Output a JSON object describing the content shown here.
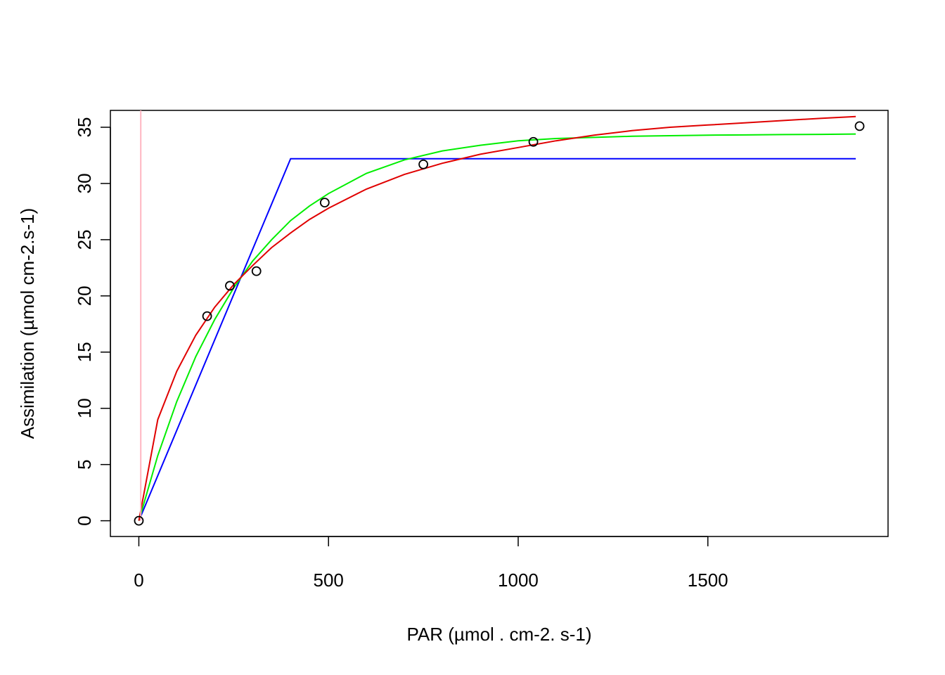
{
  "chart_data": {
    "type": "scatter",
    "xlabel": "PAR (µmol . cm-2. s-1)",
    "ylabel": "Assimilation (µmol cm-2.s-1)",
    "xlim": [
      -75,
      1975
    ],
    "ylim": [
      -1.4,
      36.5
    ],
    "x_ticks": [
      0,
      500,
      1000,
      1500
    ],
    "y_ticks": [
      0,
      5,
      10,
      15,
      20,
      25,
      30,
      35
    ],
    "grid": false,
    "points": {
      "x": [
        0,
        180,
        240,
        310,
        490,
        750,
        1040,
        1900
      ],
      "y": [
        0,
        18.2,
        20.9,
        22.2,
        28.3,
        31.7,
        33.7,
        35.1
      ]
    },
    "series": [
      {
        "color": "#0000ff",
        "x": [
          0,
          400,
          1890
        ],
        "y": [
          0,
          32.2,
          32.2
        ]
      },
      {
        "color": "#00ee00",
        "x": [
          0,
          50,
          100,
          150,
          200,
          250,
          300,
          350,
          400,
          450,
          500,
          600,
          700,
          800,
          900,
          1000,
          1100,
          1200,
          1300,
          1400,
          1500,
          1600,
          1700,
          1800,
          1890
        ],
        "y": [
          0,
          5.8,
          10.6,
          14.6,
          17.9,
          20.7,
          23.1,
          25.0,
          26.7,
          28.0,
          29.1,
          30.9,
          32.1,
          32.9,
          33.4,
          33.8,
          34.0,
          34.1,
          34.2,
          34.25,
          34.3,
          34.32,
          34.35,
          34.37,
          34.4
        ]
      },
      {
        "color": "#e00000",
        "x": [
          0,
          50,
          100,
          150,
          200,
          250,
          300,
          350,
          400,
          450,
          500,
          600,
          700,
          800,
          900,
          1000,
          1100,
          1200,
          1300,
          1400,
          1500,
          1600,
          1700,
          1800,
          1890
        ],
        "y": [
          0,
          9.0,
          13.3,
          16.5,
          19.0,
          21.0,
          22.7,
          24.3,
          25.6,
          26.8,
          27.8,
          29.5,
          30.8,
          31.8,
          32.6,
          33.2,
          33.8,
          34.3,
          34.7,
          35.0,
          35.2,
          35.4,
          35.6,
          35.8,
          35.95
        ]
      },
      {
        "color": "#ffb6c1",
        "x": [
          5,
          5
        ],
        "y": [
          0,
          36.5
        ]
      }
    ]
  }
}
